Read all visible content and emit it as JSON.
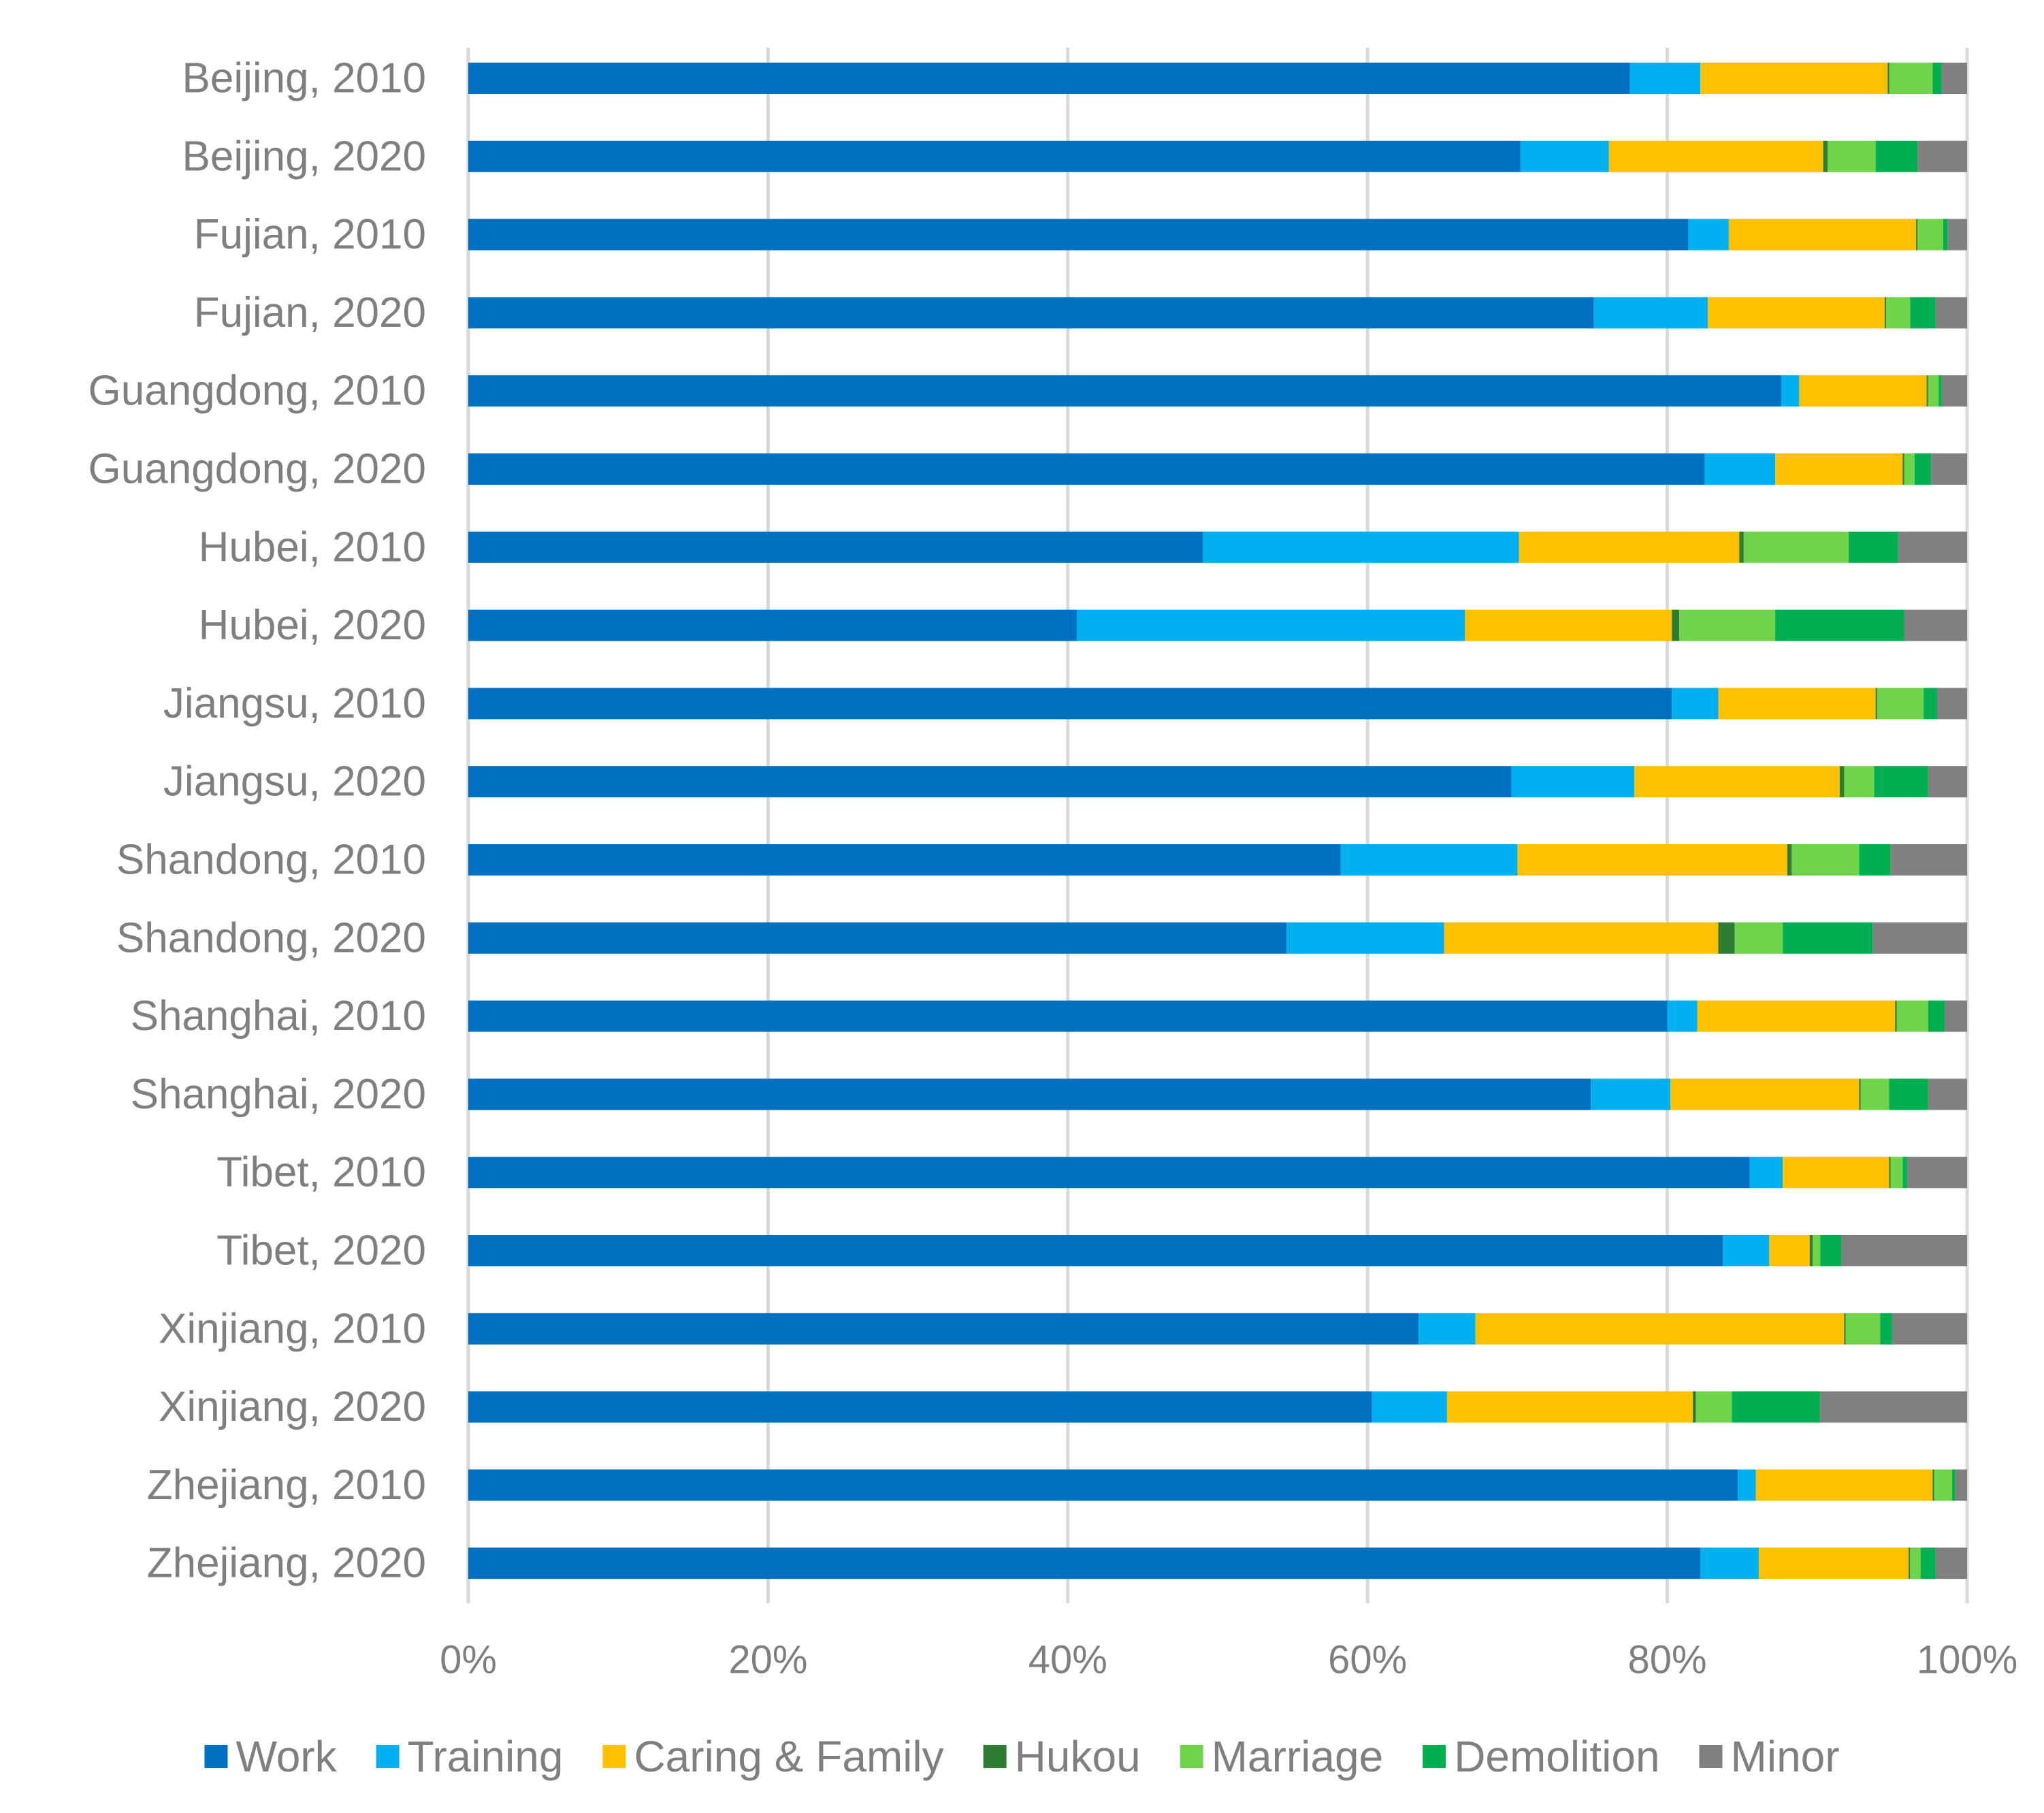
{
  "chart_data": {
    "type": "bar",
    "orientation": "horizontal",
    "stacked": true,
    "percent": true,
    "title": "",
    "xlabel": "",
    "ylabel": "",
    "xlim": [
      0,
      100
    ],
    "x_ticks": [
      "0%",
      "20%",
      "40%",
      "60%",
      "80%",
      "100%"
    ],
    "grid": true,
    "legend_position": "bottom",
    "categories": [
      "Beijing, 2010",
      "Beijing, 2020",
      "Fujian, 2010",
      "Fujian, 2020",
      "Guangdong, 2010",
      "Guangdong, 2020",
      "Hubei, 2010",
      "Hubei, 2020",
      "Jiangsu, 2010",
      "Jiangsu, 2020",
      "Shandong, 2010",
      "Shandong, 2020",
      "Shanghai, 2010",
      "Shanghai, 2020",
      "Tibet, 2010",
      "Tibet, 2020",
      "Xinjiang, 2010",
      "Xinjiang, 2020",
      "Zhejiang, 2010",
      "Zhejiang, 2020"
    ],
    "series": [
      {
        "name": "Work",
        "color": "#0070C0",
        "values": [
          77.5,
          70.2,
          81.4,
          75.1,
          87.6,
          82.5,
          49.0,
          40.6,
          80.3,
          69.6,
          58.2,
          54.6,
          80.0,
          74.9,
          85.5,
          83.7,
          63.4,
          60.3,
          84.7,
          82.2
        ]
      },
      {
        "name": "Training",
        "color": "#00B0F0",
        "values": [
          4.7,
          5.9,
          2.7,
          7.6,
          1.2,
          4.7,
          21.1,
          25.9,
          3.1,
          8.2,
          11.8,
          10.5,
          2.0,
          5.3,
          2.2,
          3.1,
          3.8,
          5.0,
          1.2,
          3.9
        ]
      },
      {
        "name": "Caring & Family",
        "color": "#FFC000",
        "values": [
          12.5,
          14.3,
          12.5,
          11.8,
          8.5,
          8.5,
          14.7,
          13.8,
          10.5,
          13.7,
          18.0,
          18.3,
          13.2,
          12.6,
          7.1,
          2.7,
          24.6,
          16.4,
          11.8,
          10.0
        ]
      },
      {
        "name": "Hukou",
        "color": "#2E7D32",
        "values": [
          0.1,
          0.3,
          0.1,
          0.1,
          0.1,
          0.1,
          0.3,
          0.5,
          0.1,
          0.3,
          0.3,
          1.1,
          0.1,
          0.1,
          0.1,
          0.2,
          0.1,
          0.2,
          0.1,
          0.1
        ]
      },
      {
        "name": "Marriage",
        "color": "#70D44B",
        "values": [
          2.9,
          3.2,
          1.7,
          1.6,
          0.7,
          0.7,
          7.0,
          6.4,
          3.1,
          2.0,
          4.5,
          3.2,
          2.1,
          1.9,
          0.8,
          0.5,
          2.3,
          2.4,
          1.2,
          0.7
        ]
      },
      {
        "name": "Demolition",
        "color": "#00B050",
        "values": [
          0.6,
          2.8,
          0.3,
          1.7,
          0.2,
          1.1,
          3.3,
          8.6,
          0.9,
          3.6,
          2.1,
          6.0,
          1.1,
          2.6,
          0.3,
          1.4,
          0.8,
          5.9,
          0.2,
          1.0
        ]
      },
      {
        "name": "Minor",
        "color": "#808080",
        "values": [
          1.7,
          3.3,
          1.3,
          2.1,
          1.7,
          2.4,
          4.6,
          4.2,
          2.0,
          2.6,
          5.1,
          6.3,
          1.5,
          2.6,
          4.0,
          8.4,
          5.0,
          9.8,
          0.8,
          2.1
        ]
      }
    ]
  }
}
